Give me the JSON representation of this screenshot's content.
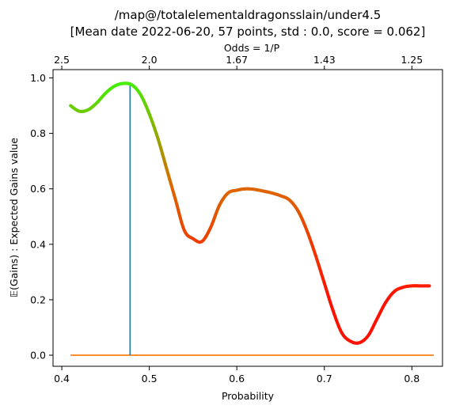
{
  "chart_data": {
    "type": "line",
    "title_line1": "/map@/totalelementaldragonsslain/under4.5",
    "title_line2": "[Mean date 2022-06-20, 57 points, std : 0.0, score = 0.062]",
    "xlabel": "Probability",
    "ylabel": "𝔼(Gains) : Expected Gains value",
    "top_xlabel": "Odds  = 1/P",
    "xlim": [
      0.39,
      0.835
    ],
    "ylim": [
      -0.04,
      1.03
    ],
    "x_ticks": [
      0.4,
      0.5,
      0.6,
      0.7,
      0.8
    ],
    "x_tick_labels": [
      "0.4",
      "0.5",
      "0.6",
      "0.7",
      "0.8"
    ],
    "y_ticks": [
      0.0,
      0.2,
      0.4,
      0.6,
      0.8,
      1.0
    ],
    "y_tick_labels": [
      "0.0",
      "0.2",
      "0.4",
      "0.6",
      "0.8",
      "1.0"
    ],
    "top_ticks_prob": [
      0.4,
      0.5,
      0.6,
      0.7,
      0.8
    ],
    "top_tick_labels": [
      "2.5",
      "2.0",
      "1.67",
      "1.43",
      "1.25"
    ],
    "curve": {
      "name": "expected-gains",
      "x": [
        0.41,
        0.42,
        0.43,
        0.44,
        0.45,
        0.46,
        0.47,
        0.48,
        0.49,
        0.5,
        0.51,
        0.52,
        0.53,
        0.54,
        0.55,
        0.56,
        0.57,
        0.58,
        0.59,
        0.6,
        0.61,
        0.62,
        0.63,
        0.64,
        0.65,
        0.66,
        0.67,
        0.68,
        0.69,
        0.7,
        0.71,
        0.72,
        0.73,
        0.74,
        0.75,
        0.76,
        0.77,
        0.78,
        0.79,
        0.8,
        0.81,
        0.82
      ],
      "y": [
        0.9,
        0.88,
        0.885,
        0.91,
        0.945,
        0.97,
        0.98,
        0.975,
        0.94,
        0.87,
        0.78,
        0.67,
        0.56,
        0.45,
        0.42,
        0.41,
        0.46,
        0.54,
        0.585,
        0.595,
        0.6,
        0.598,
        0.592,
        0.585,
        0.575,
        0.56,
        0.52,
        0.45,
        0.36,
        0.26,
        0.16,
        0.08,
        0.05,
        0.045,
        0.07,
        0.13,
        0.19,
        0.23,
        0.245,
        0.25,
        0.25,
        0.25
      ]
    },
    "vline": {
      "name": "optimal-probability",
      "x": 0.478,
      "y0": 0.0,
      "y1": 0.978,
      "color": "#1f77b4"
    },
    "baseline": {
      "name": "zero-line",
      "x0": 0.41,
      "x1": 0.825,
      "y": 0.0,
      "color": "#ff7f0e"
    },
    "colors": {
      "high": "#44ee00",
      "mid": "#dd6600",
      "low": "#ff1100"
    }
  }
}
